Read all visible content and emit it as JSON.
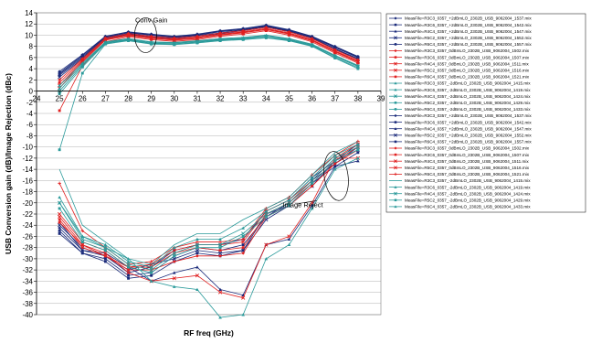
{
  "chart_data": {
    "type": "line",
    "xlabel": "RF freq (GHz)",
    "ylabel": "USB Conversion gain (dB)/Image Rejection (dBc)",
    "xlim": [
      24,
      39
    ],
    "ylim": [
      -40,
      14
    ],
    "x_ticks": [
      24,
      25,
      26,
      27,
      28,
      29,
      30,
      31,
      32,
      33,
      34,
      35,
      36,
      37,
      38,
      39
    ],
    "y_ticks": [
      -40,
      -38,
      -36,
      -34,
      -32,
      -30,
      -28,
      -26,
      -24,
      -22,
      -20,
      -18,
      -16,
      -14,
      -12,
      -10,
      -8,
      -6,
      -4,
      -2,
      0,
      2,
      4,
      6,
      8,
      10,
      12,
      14
    ],
    "grid": "horizontal",
    "legend_position": "right",
    "x": [
      25,
      26,
      27,
      28,
      29,
      30,
      31,
      32,
      33,
      34,
      35,
      36,
      37,
      38
    ],
    "annotations": [
      {
        "text": "Conv Gain",
        "x": 29,
        "y": 12.3
      },
      {
        "text": "Image Reject",
        "x": 35.6,
        "y": -20.8
      }
    ],
    "series": [
      {
        "name": "MeasFile=R3C3_0357_+2dBmLO_2302B_USB_9062004_1537.mix",
        "color": "#1a2a7a",
        "marker": "diamond",
        "group": "gain",
        "values": [
          3.5,
          6.5,
          9.8,
          10.6,
          10.2,
          9.8,
          10.2,
          10.8,
          11.2,
          11.8,
          11.0,
          9.8,
          8.0,
          6.2
        ]
      },
      {
        "name": "MeasFile=R3C6_0357_+2dBmLO_2302B_USB_9062004_1542.mix",
        "color": "#1a2a7a",
        "marker": "square",
        "group": "gain",
        "values": [
          3.0,
          6.2,
          9.6,
          10.4,
          10.0,
          9.6,
          10.0,
          10.6,
          11.0,
          11.6,
          10.8,
          9.6,
          7.8,
          6.0
        ]
      },
      {
        "name": "MeasFile=R4C4_0357_+2dBmLO_2302B_USB_9062004_1547.mix",
        "color": "#1a2a7a",
        "marker": "triangle",
        "group": "gain",
        "values": [
          2.8,
          6.0,
          9.5,
          10.3,
          9.8,
          9.5,
          9.9,
          10.4,
          10.9,
          11.5,
          10.7,
          9.5,
          7.6,
          5.8
        ]
      },
      {
        "name": "MeasFile=R5C2_0357_+2dBmLO_2302B_USB_9062004_1552.mix",
        "color": "#1a2a7a",
        "marker": "x",
        "group": "gain",
        "values": [
          2.5,
          5.8,
          9.4,
          10.2,
          9.7,
          9.4,
          9.8,
          10.3,
          10.8,
          11.4,
          10.6,
          9.4,
          7.5,
          5.7
        ]
      },
      {
        "name": "MeasFile=R6C4_0357_+2dBmLO_2302B_USB_9062004_1557.mix",
        "color": "#1a2a7a",
        "marker": "square",
        "group": "gain",
        "values": [
          3.2,
          6.4,
          9.7,
          10.5,
          10.1,
          9.7,
          10.1,
          10.7,
          11.1,
          11.7,
          10.9,
          9.7,
          7.9,
          6.1
        ]
      },
      {
        "name": "MeasFile=R3C3_0357_0dBmLO_2302B_USB_9062004_1502.mix",
        "color": "#e02020",
        "marker": "diamond",
        "group": "gain",
        "values": [
          2.0,
          5.8,
          9.5,
          10.3,
          9.8,
          9.5,
          9.8,
          10.4,
          10.8,
          11.4,
          10.6,
          9.4,
          7.4,
          5.6
        ]
      },
      {
        "name": "MeasFile=R3C6_0357_0dBmLO_2302B_USB_9062004_1507.mix",
        "color": "#e02020",
        "marker": "square",
        "group": "gain",
        "values": [
          1.5,
          5.6,
          9.3,
          10.1,
          9.6,
          9.3,
          9.6,
          10.2,
          10.6,
          11.2,
          10.4,
          9.2,
          7.2,
          5.4
        ]
      },
      {
        "name": "MeasFile=R4C4_0357_0dBmLO_2302B_USB_9062004_1511.mix",
        "color": "#e02020",
        "marker": "x",
        "group": "gain",
        "values": [
          1.0,
          5.4,
          9.2,
          10.0,
          9.5,
          9.2,
          9.5,
          10.1,
          10.5,
          11.1,
          10.3,
          9.1,
          7.1,
          5.3
        ]
      },
      {
        "name": "MeasFile=R5C2_0357_0dBmLO_2302B_USB_9062004_1516.mix",
        "color": "#e02020",
        "marker": "x",
        "group": "gain",
        "values": [
          0.5,
          5.2,
          9.1,
          9.9,
          9.4,
          9.1,
          9.4,
          10.0,
          10.4,
          11.0,
          10.2,
          9.0,
          7.0,
          5.2
        ]
      },
      {
        "name": "MeasFile=R6C4_0357_0dBmLO_2302B_USB_9062004_1521.mix",
        "color": "#e02020",
        "marker": "square",
        "group": "gain",
        "values": [
          -3.5,
          4.5,
          8.8,
          9.7,
          9.2,
          8.9,
          9.2,
          9.8,
          10.2,
          10.8,
          10.0,
          8.8,
          6.8,
          5.0
        ]
      },
      {
        "name": "MeasFile=R3C3_0357_-2dBmLO_2302B_USB_9062004_1415.mix",
        "color": "#2a9a9a",
        "marker": "triangle",
        "group": "gain",
        "values": [
          1.0,
          5.0,
          8.8,
          9.4,
          8.8,
          8.7,
          9.0,
          9.4,
          9.6,
          10.0,
          9.4,
          8.4,
          6.4,
          4.6
        ]
      },
      {
        "name": "MeasFile=R3C6_0357_-2dBmLO_2302B_USB_9062004_1419.mix",
        "color": "#2a9a9a",
        "marker": "triangle",
        "group": "gain",
        "values": [
          0.5,
          4.8,
          8.7,
          9.3,
          8.7,
          8.6,
          8.9,
          9.3,
          9.5,
          9.9,
          9.3,
          8.3,
          6.3,
          4.5
        ]
      },
      {
        "name": "MeasFile=R4C4_0357_-2dBmLO_2302B_USB_9062004_1424.mix",
        "color": "#2a9a9a",
        "marker": "x",
        "group": "gain",
        "values": [
          0.0,
          4.6,
          8.6,
          9.2,
          8.6,
          8.5,
          8.8,
          9.2,
          9.4,
          9.8,
          9.2,
          8.2,
          6.2,
          4.4
        ]
      },
      {
        "name": "MeasFile=R5C2_0357_-2dBmLO_2302B_USB_9062004_1429.mix",
        "color": "#2a9a9a",
        "marker": "square",
        "group": "gain",
        "values": [
          -0.5,
          4.3,
          8.5,
          9.1,
          8.5,
          8.4,
          8.7,
          9.1,
          9.3,
          9.6,
          9.1,
          8.1,
          6.0,
          4.2
        ]
      },
      {
        "name": "MeasFile=R6C4_0357_-2dBmLO_2302B_USB_9062004_1433.mix",
        "color": "#2a9a9a",
        "marker": "square",
        "group": "gain",
        "values": [
          -10.5,
          3.2,
          8.4,
          9.0,
          8.4,
          8.3,
          8.6,
          9.0,
          9.2,
          9.5,
          9.0,
          8.0,
          5.9,
          4.0
        ]
      },
      {
        "name": "MeasFile=R3C3_0357_+2dBmLO_2302B_USB_9062004_1537.mix",
        "color": "#1a2a7a",
        "marker": "diamond",
        "group": "image",
        "values": [
          -24.5,
          -28.5,
          -29.5,
          -32.5,
          -31.5,
          -28.5,
          -27.5,
          -27.5,
          -26.5,
          -21.5,
          -19.5,
          -15.5,
          -12.5,
          -9.5
        ]
      },
      {
        "name": "MeasFile=R3C6_0357_+2dBmLO_2302B_USB_9062004_1542.mix",
        "color": "#1a2a7a",
        "marker": "square",
        "group": "image",
        "values": [
          -25.0,
          -29.0,
          -30.0,
          -33.0,
          -32.5,
          -29.5,
          -28.0,
          -28.5,
          -27.5,
          -22.5,
          -20.0,
          -16.0,
          -13.0,
          -10.0
        ]
      },
      {
        "name": "MeasFile=R4C4_0357_+2dBmLO_2302B_USB_9062004_1547.mix",
        "color": "#1a2a7a",
        "marker": "triangle",
        "group": "image",
        "values": [
          -23.5,
          -28.5,
          -29.0,
          -31.5,
          -34.0,
          -32.5,
          -31.5,
          -35.5,
          -36.5,
          -27.5,
          -26.5,
          -20.5,
          -13.5,
          -12.5
        ]
      },
      {
        "name": "MeasFile=R5C2_0357_+2dBmLO_2302B_USB_9062004_1552.mix",
        "color": "#1a2a7a",
        "marker": "x",
        "group": "image",
        "values": [
          -24.0,
          -28.0,
          -29.5,
          -32.0,
          -31.0,
          -30.0,
          -28.5,
          -29.0,
          -28.5,
          -23.0,
          -20.5,
          -17.0,
          -12.5,
          -10.5
        ]
      },
      {
        "name": "MeasFile=R6C4_0357_+2dBmLO_2302B_USB_9062004_1557.mix",
        "color": "#1a2a7a",
        "marker": "square",
        "group": "image",
        "values": [
          -25.5,
          -29.0,
          -30.5,
          -33.5,
          -33.0,
          -30.5,
          -29.0,
          -29.5,
          -28.5,
          -22.0,
          -20.5,
          -16.5,
          -13.5,
          -11.0
        ]
      },
      {
        "name": "MeasFile=R3C3_0357_0dBmLO_2302B_USB_9062004_1502.mix",
        "color": "#e02020",
        "marker": "diamond",
        "group": "image",
        "values": [
          -23.0,
          -28.0,
          -29.5,
          -32.0,
          -32.0,
          -30.5,
          -29.5,
          -29.5,
          -29.0,
          -22.5,
          -20.5,
          -17.0,
          -13.0,
          -10.5
        ]
      },
      {
        "name": "MeasFile=R3C6_0357_0dBmLO_2302B_USB_9062004_1507.mix",
        "color": "#e02020",
        "marker": "square",
        "group": "image",
        "values": [
          -23.5,
          -27.5,
          -29.5,
          -31.5,
          -31.5,
          -29.0,
          -28.0,
          -28.5,
          -28.0,
          -22.0,
          -20.0,
          -16.5,
          -12.5,
          -10.0
        ]
      },
      {
        "name": "MeasFile=R4C4_0357_0dBmLO_2302B_USB_9062004_1511.mix",
        "color": "#e02020",
        "marker": "x",
        "group": "image",
        "values": [
          -22.5,
          -27.5,
          -29.0,
          -32.5,
          -34.0,
          -33.5,
          -33.0,
          -36.0,
          -37.0,
          -27.5,
          -26.0,
          -20.0,
          -12.0,
          -12.0
        ]
      },
      {
        "name": "MeasFile=R5C2_0357_0dBmLO_2302B_USB_9062004_1516.mix",
        "color": "#e02020",
        "marker": "x",
        "group": "image",
        "values": [
          -22.0,
          -27.0,
          -28.5,
          -31.5,
          -31.0,
          -28.5,
          -27.5,
          -27.5,
          -27.0,
          -21.5,
          -19.5,
          -16.0,
          -12.0,
          -9.5
        ]
      },
      {
        "name": "MeasFile=R6C4_0357_0dBmLO_2302B_USB_9062004_1521.mix",
        "color": "#e02020",
        "marker": "plus",
        "group": "image",
        "values": [
          -16.5,
          -25.0,
          -28.0,
          -31.0,
          -30.5,
          -28.0,
          -27.0,
          -27.0,
          -26.5,
          -21.0,
          -19.0,
          -15.0,
          -11.5,
          -9.0
        ]
      },
      {
        "name": "MeasFile=R3C3_0357_-2dBmLO_2302B_USB_9062004_1415.mix",
        "color": "#2a9a9a",
        "marker": "none",
        "group": "image",
        "values": [
          -14.0,
          -24.0,
          -27.0,
          -30.0,
          -31.0,
          -27.5,
          -25.5,
          -25.5,
          -23.0,
          -21.0,
          -19.0,
          -15.0,
          -11.0,
          -9.0
        ]
      },
      {
        "name": "MeasFile=R3C6_0357_-2dBmLO_2302B_USB_9062004_1419.mix",
        "color": "#2a9a9a",
        "marker": "triangle",
        "group": "image",
        "values": [
          -19.0,
          -26.0,
          -27.5,
          -30.5,
          -31.5,
          -28.0,
          -26.5,
          -26.5,
          -24.5,
          -21.5,
          -19.5,
          -15.5,
          -11.5,
          -9.5
        ]
      },
      {
        "name": "MeasFile=R4C4_0357_-2dBmLO_2302B_USB_9062004_1424.mix",
        "color": "#2a9a9a",
        "marker": "x",
        "group": "image",
        "values": [
          -20.0,
          -26.5,
          -28.0,
          -31.0,
          -32.0,
          -29.0,
          -27.5,
          -27.5,
          -25.5,
          -22.0,
          -20.0,
          -16.0,
          -12.0,
          -10.0
        ]
      },
      {
        "name": "MeasFile=R5C2_0357_-2dBmLO_2302B_USB_9062004_1429.mix",
        "color": "#2a9a9a",
        "marker": "square",
        "group": "image",
        "values": [
          -21.0,
          -27.0,
          -28.5,
          -31.5,
          -32.5,
          -29.5,
          -28.0,
          -28.0,
          -26.0,
          -22.5,
          -20.5,
          -16.5,
          -12.5,
          -10.5
        ]
      },
      {
        "name": "MeasFile=R6C4_0357_-2dBmLO_2302B_USB_9062004_1433.mix",
        "color": "#2a9a9a",
        "marker": "triangle",
        "group": "image",
        "values": [
          -20.0,
          -26.0,
          -28.0,
          -30.0,
          -34.0,
          -35.0,
          -35.5,
          -40.5,
          -40.0,
          -30.0,
          -27.5,
          -21.0,
          -14.0,
          -12.0
        ]
      }
    ]
  }
}
